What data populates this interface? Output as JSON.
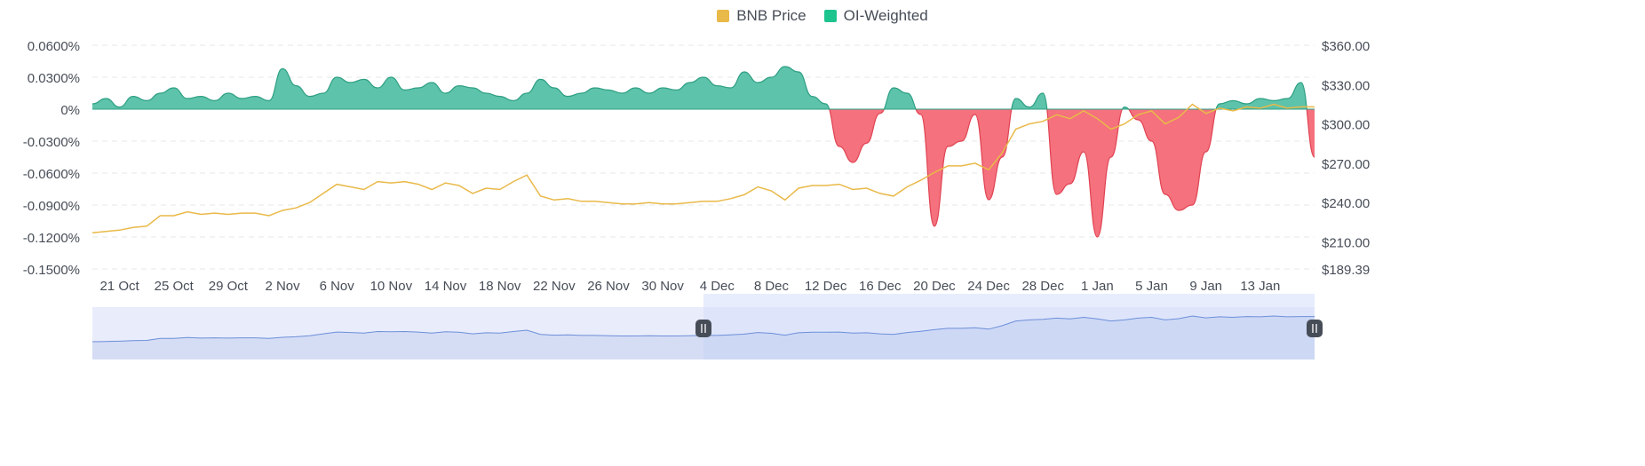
{
  "legend": {
    "items": [
      {
        "label": "BNB Price",
        "color": "#e9b949",
        "icon": "square-swatch"
      },
      {
        "label": "OI-Weighted",
        "color": "#1ec48d",
        "icon": "square-swatch"
      }
    ]
  },
  "colors": {
    "positive_fill": "#5ec3ab",
    "positive_stroke": "#2d9f83",
    "negative_fill": "#f4717d",
    "negative_stroke": "#e04352",
    "price_line": "#e9b949",
    "grid": "#e6e8ea",
    "axis_text": "#474d57",
    "navigator_fill": "#e8ecfb",
    "navigator_selected": "#d7e1fb",
    "navigator_line": "#6d8fd8",
    "handle": "#474d57"
  },
  "chart_data": {
    "type": "area",
    "left_axis": {
      "ticks": [
        "0.0600%",
        "0.0300%",
        "0%",
        "-0.0300%",
        "-0.0600%",
        "-0.0900%",
        "-0.1200%",
        "-0.1500%"
      ],
      "range": [
        -0.15,
        0.06
      ],
      "unit": "%"
    },
    "right_axis": {
      "ticks": [
        "$360.00",
        "$330.00",
        "$300.00",
        "$270.00",
        "$240.00",
        "$210.00",
        "$189.39"
      ],
      "tick_values": [
        360,
        330,
        300,
        270,
        240,
        210,
        189.39
      ],
      "range": [
        189.39,
        360
      ]
    },
    "x_axis": {
      "ticks": [
        "21 Oct",
        "25 Oct",
        "29 Oct",
        "2 Nov",
        "6 Nov",
        "10 Nov",
        "14 Nov",
        "18 Nov",
        "22 Nov",
        "26 Nov",
        "30 Nov",
        "4 Dec",
        "8 Dec",
        "12 Dec",
        "16 Dec",
        "20 Dec",
        "24 Dec",
        "28 Dec",
        "1 Jan",
        "5 Jan",
        "9 Jan",
        "13 Jan"
      ],
      "start": "2022-10-19",
      "end": "2023-01-17"
    },
    "grid": true,
    "legend_position": "top-center",
    "series": [
      {
        "name": "OI-Weighted",
        "axis": "left",
        "type": "area",
        "x": [
          "2022-10-19",
          "2022-10-20",
          "2022-10-21",
          "2022-10-22",
          "2022-10-23",
          "2022-10-24",
          "2022-10-25",
          "2022-10-26",
          "2022-10-27",
          "2022-10-28",
          "2022-10-29",
          "2022-10-30",
          "2022-10-31",
          "2022-11-01",
          "2022-11-02",
          "2022-11-03",
          "2022-11-04",
          "2022-11-05",
          "2022-11-06",
          "2022-11-07",
          "2022-11-08",
          "2022-11-09",
          "2022-11-10",
          "2022-11-11",
          "2022-11-12",
          "2022-11-13",
          "2022-11-14",
          "2022-11-15",
          "2022-11-16",
          "2022-11-17",
          "2022-11-18",
          "2022-11-19",
          "2022-11-20",
          "2022-11-21",
          "2022-11-22",
          "2022-11-23",
          "2022-11-24",
          "2022-11-25",
          "2022-11-26",
          "2022-11-27",
          "2022-11-28",
          "2022-11-29",
          "2022-11-30",
          "2022-12-01",
          "2022-12-02",
          "2022-12-03",
          "2022-12-04",
          "2022-12-05",
          "2022-12-06",
          "2022-12-07",
          "2022-12-08",
          "2022-12-09",
          "2022-12-10",
          "2022-12-11",
          "2022-12-12",
          "2022-12-13",
          "2022-12-14",
          "2022-12-15",
          "2022-12-16",
          "2022-12-17",
          "2022-12-18",
          "2022-12-19",
          "2022-12-20",
          "2022-12-21",
          "2022-12-22",
          "2022-12-23",
          "2022-12-24",
          "2022-12-25",
          "2022-12-26",
          "2022-12-27",
          "2022-12-28",
          "2022-12-29",
          "2022-12-30",
          "2022-12-31",
          "2023-01-01",
          "2023-01-02",
          "2023-01-03",
          "2023-01-04",
          "2023-01-05",
          "2023-01-06",
          "2023-01-07",
          "2023-01-08",
          "2023-01-09",
          "2023-01-10",
          "2023-01-11",
          "2023-01-12",
          "2023-01-13",
          "2023-01-14",
          "2023-01-15",
          "2023-01-16",
          "2023-01-17"
        ],
        "values": [
          0.005,
          0.01,
          0.002,
          0.012,
          0.008,
          0.015,
          0.02,
          0.01,
          0.012,
          0.008,
          0.015,
          0.01,
          0.012,
          0.008,
          0.038,
          0.022,
          0.012,
          0.015,
          0.03,
          0.025,
          0.028,
          0.02,
          0.03,
          0.018,
          0.02,
          0.025,
          0.015,
          0.022,
          0.02,
          0.015,
          0.012,
          0.008,
          0.015,
          0.028,
          0.02,
          0.012,
          0.015,
          0.02,
          0.018,
          0.015,
          0.02,
          0.015,
          0.02,
          0.018,
          0.025,
          0.03,
          0.022,
          0.02,
          0.035,
          0.025,
          0.03,
          0.04,
          0.035,
          0.012,
          0.005,
          -0.035,
          -0.05,
          -0.032,
          -0.004,
          0.02,
          0.015,
          -0.005,
          -0.11,
          -0.035,
          -0.03,
          -0.005,
          -0.085,
          -0.045,
          0.01,
          0.002,
          0.015,
          -0.08,
          -0.07,
          -0.04,
          -0.12,
          -0.045,
          0.002,
          -0.01,
          -0.03,
          -0.08,
          -0.095,
          -0.09,
          -0.04,
          0.005,
          0.008,
          0.005,
          0.01,
          0.008,
          0.01,
          0.025,
          -0.045
        ]
      },
      {
        "name": "BNB Price",
        "axis": "right",
        "type": "line",
        "x": [
          "2022-10-19",
          "2022-10-20",
          "2022-10-21",
          "2022-10-22",
          "2022-10-23",
          "2022-10-24",
          "2022-10-25",
          "2022-10-26",
          "2022-10-27",
          "2022-10-28",
          "2022-10-29",
          "2022-10-30",
          "2022-10-31",
          "2022-11-01",
          "2022-11-02",
          "2022-11-03",
          "2022-11-04",
          "2022-11-05",
          "2022-11-06",
          "2022-11-07",
          "2022-11-08",
          "2022-11-09",
          "2022-11-10",
          "2022-11-11",
          "2022-11-12",
          "2022-11-13",
          "2022-11-14",
          "2022-11-15",
          "2022-11-16",
          "2022-11-17",
          "2022-11-18",
          "2022-11-19",
          "2022-11-20",
          "2022-11-21",
          "2022-11-22",
          "2022-11-23",
          "2022-11-24",
          "2022-11-25",
          "2022-11-26",
          "2022-11-27",
          "2022-11-28",
          "2022-11-29",
          "2022-11-30",
          "2022-12-01",
          "2022-12-02",
          "2022-12-03",
          "2022-12-04",
          "2022-12-05",
          "2022-12-06",
          "2022-12-07",
          "2022-12-08",
          "2022-12-09",
          "2022-12-10",
          "2022-12-11",
          "2022-12-12",
          "2022-12-13",
          "2022-12-14",
          "2022-12-15",
          "2022-12-16",
          "2022-12-17",
          "2022-12-18",
          "2022-12-19",
          "2022-12-20",
          "2022-12-21",
          "2022-12-22",
          "2022-12-23",
          "2022-12-24",
          "2022-12-25",
          "2022-12-26",
          "2022-12-27",
          "2022-12-28",
          "2022-12-29",
          "2022-12-30",
          "2022-12-31",
          "2023-01-01",
          "2023-01-02",
          "2023-01-03",
          "2023-01-04",
          "2023-01-05",
          "2023-01-06",
          "2023-01-07",
          "2023-01-08",
          "2023-01-09",
          "2023-01-10",
          "2023-01-11",
          "2023-01-12",
          "2023-01-13",
          "2023-01-14",
          "2023-01-15",
          "2023-01-16",
          "2023-01-17"
        ],
        "values": [
          217,
          218,
          219,
          221,
          222,
          230,
          230,
          233,
          231,
          232,
          231,
          232,
          232,
          230,
          234,
          236,
          240,
          247,
          254,
          252,
          250,
          256,
          255,
          256,
          254,
          250,
          255,
          253,
          247,
          251,
          250,
          256,
          261,
          245,
          242,
          243,
          241,
          241,
          240,
          239,
          239,
          240,
          239,
          239,
          240,
          241,
          241,
          243,
          246,
          252,
          249,
          242,
          251,
          253,
          253,
          254,
          250,
          251,
          247,
          245,
          252,
          257,
          263,
          268,
          268,
          270,
          265,
          278,
          296,
          300,
          302,
          307,
          304,
          310,
          304,
          296,
          300,
          307,
          310,
          300,
          305,
          315,
          308,
          312,
          310,
          313,
          312,
          315,
          312,
          313,
          313
        ]
      }
    ]
  }
}
